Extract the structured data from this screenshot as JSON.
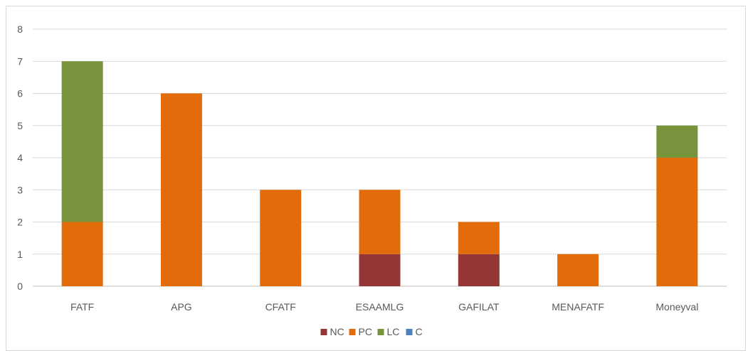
{
  "chart_data": {
    "type": "bar",
    "stacked": true,
    "categories": [
      "FATF",
      "APG",
      "CFATF",
      "ESAAMLG",
      "GAFILAT",
      "MENAFATF",
      "Moneyval"
    ],
    "series": [
      {
        "name": "NC",
        "color": "#943634",
        "values": [
          0,
          0,
          0,
          1,
          1,
          0,
          0
        ]
      },
      {
        "name": "PC",
        "color": "#E36C0A",
        "values": [
          2,
          6,
          3,
          2,
          1,
          1,
          4
        ]
      },
      {
        "name": "LC",
        "color": "#77933C",
        "values": [
          5,
          0,
          0,
          0,
          0,
          0,
          1
        ]
      },
      {
        "name": "C",
        "color": "#4F81BD",
        "values": [
          0,
          0,
          0,
          0,
          0,
          0,
          0
        ]
      }
    ],
    "yticks": [
      "0",
      "1",
      "2",
      "3",
      "4",
      "5",
      "6",
      "7",
      "8"
    ],
    "ylim": [
      0,
      8
    ],
    "grid": true,
    "legend_position": "bottom"
  }
}
